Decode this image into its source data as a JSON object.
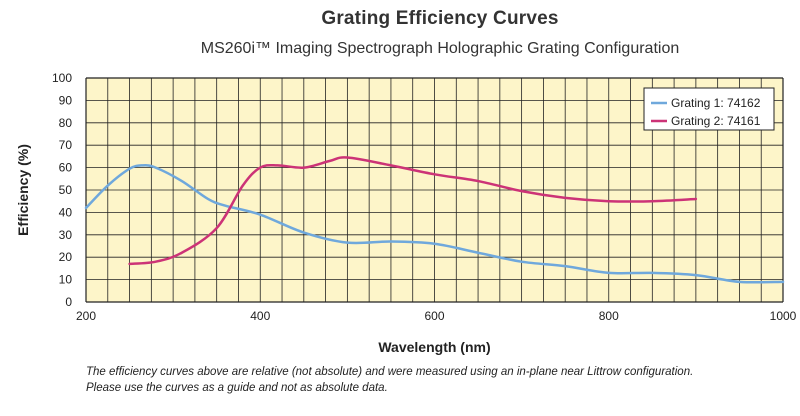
{
  "chart_data": {
    "type": "line",
    "title": "Grating Efficiency Curves",
    "subtitle": "MS260i™ Imaging Spectrograph Holographic Grating Configuration",
    "xlabel": "Wavelength (nm)",
    "ylabel": "Efficiency (%)",
    "xlim": [
      200,
      1000
    ],
    "ylim": [
      0,
      100
    ],
    "x_ticks": [
      200,
      400,
      600,
      800,
      1000
    ],
    "y_ticks": [
      0,
      10,
      20,
      30,
      40,
      50,
      60,
      70,
      80,
      90,
      100
    ],
    "grid": true,
    "legend_position": "top-right",
    "series": [
      {
        "name": "Grating 1: 74162",
        "color": "#6fa8dc",
        "x": [
          200,
          225,
          250,
          265,
          280,
          310,
          340,
          360,
          400,
          450,
          500,
          550,
          600,
          650,
          700,
          750,
          800,
          850,
          900,
          950,
          1000
        ],
        "y": [
          42,
          52,
          59.5,
          61,
          60,
          54,
          46,
          43,
          39,
          31,
          26.5,
          27,
          26,
          22,
          18,
          16,
          13,
          13,
          12,
          9,
          9
        ]
      },
      {
        "name": "Grating 2: 74161",
        "color": "#cc3377",
        "x": [
          250,
          280,
          310,
          350,
          380,
          400,
          420,
          450,
          480,
          500,
          550,
          600,
          650,
          700,
          750,
          800,
          850,
          900
        ],
        "y": [
          17,
          18,
          22,
          33,
          52,
          60,
          61,
          60,
          63,
          64.5,
          61,
          57,
          54,
          49.5,
          46.5,
          45,
          45,
          46
        ]
      }
    ]
  },
  "footnote": {
    "line1": "The efficiency curves above are relative (not absolute) and were measured using an in-plane near Littrow configuration.",
    "line2": "Please use the curves as a guide and not as absolute data."
  },
  "colors": {
    "plot_background": "#fdf5c9",
    "grid": "#222222"
  }
}
